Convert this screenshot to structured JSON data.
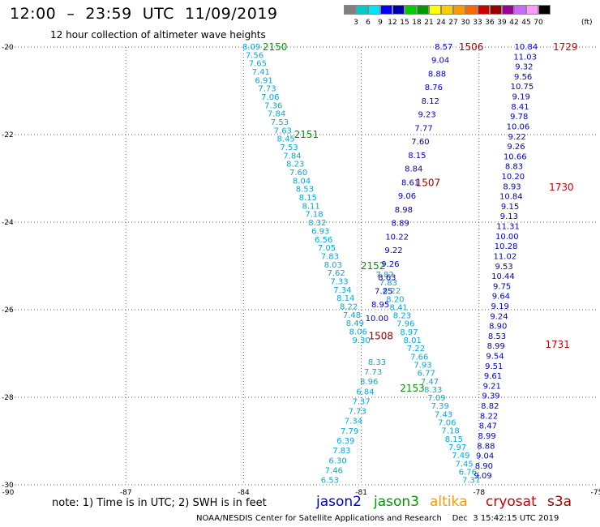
{
  "header": {
    "title": "12:00  –  23:59  UTC  11/09/2019",
    "subtitle": "12 hour collection of altimeter wave heights"
  },
  "colorbar": {
    "colors": [
      "#7f7f7f",
      "#00cccc",
      "#00e5ff",
      "#0000ff",
      "#0000aa",
      "#00cc00",
      "#009900",
      "#ffff00",
      "#ffcc00",
      "#ff9900",
      "#ff6600",
      "#cc0000",
      "#990000",
      "#990099",
      "#cc66ff",
      "#ff99ff",
      "#000000"
    ],
    "ticks": [
      "3",
      "6",
      "9",
      "12",
      "15",
      "18",
      "21",
      "24",
      "27",
      "30",
      "33",
      "36",
      "39",
      "42",
      "45",
      "70"
    ],
    "unit": "(ft)"
  },
  "axes": {
    "lon_labels": [
      "-90",
      "-87",
      "-84",
      "-81",
      "-78",
      "-75"
    ],
    "lat_labels": [
      "-20",
      "-22",
      "-24",
      "-26",
      "-28",
      "-30"
    ]
  },
  "chart_data": {
    "type": "scatter",
    "x_label": "longitude",
    "y_label": "latitude",
    "xlim": [
      -90,
      -75
    ],
    "ylim": [
      -30,
      -20
    ],
    "grid": true,
    "colors": {
      "jason3": "#009900",
      "jason3_values": "#00aadd",
      "jason2": "#0000cc",
      "cryosat": "#cc0000",
      "cryosat_dark": "#990000"
    },
    "tracks": [
      {
        "name": "A",
        "series": "jason3",
        "color": "#00aadd",
        "start": [
          -83.8,
          -20.0
        ],
        "end": [
          -81.0,
          -26.7
        ],
        "values": [
          "8.09",
          "7.56",
          "7.65",
          "7.41",
          "6.91",
          "7.73",
          "7.06",
          "7.36",
          "7.84",
          "7.53",
          "7.63",
          "8.45",
          "7.53",
          "7.84",
          "8.23",
          "7.60",
          "8.04",
          "8.53",
          "8.15",
          "8.11",
          "7.18",
          "8.32",
          "6.93",
          "6.56",
          "7.05",
          "7.83",
          "8.03",
          "7.62",
          "7.33",
          "7.34",
          "8.14",
          "8.22",
          "7.48",
          "8.49",
          "8.06",
          "9.30"
        ]
      },
      {
        "name": "B",
        "series": "jason3",
        "color": "#00aadd",
        "start": [
          -80.4,
          -25.2
        ],
        "end": [
          -78.2,
          -29.9
        ],
        "values": [
          "7.82",
          "7.83",
          "8.22",
          "8.20",
          "8.41",
          "8.23",
          "7.96",
          "8.97",
          "8.01",
          "7.22",
          "7.66",
          "7.93",
          "6.77",
          "7.47",
          "8.33",
          "7.09",
          "7.39",
          "7.43",
          "7.06",
          "7.18",
          "8.15",
          "7.97",
          "7.49",
          "7.45",
          "6.76",
          "7.37"
        ]
      },
      {
        "name": "C",
        "series": "jason3",
        "color": "#00aadd",
        "start": [
          -80.6,
          -27.2
        ],
        "end": [
          -81.8,
          -29.9
        ],
        "values": [
          "8.33",
          "7.73",
          "8.96",
          "6.84",
          "7.37",
          "7.73",
          "7.34",
          "7.79",
          "6.39",
          "7.83",
          "6.30",
          "7.46",
          "6.53"
        ]
      },
      {
        "name": "D",
        "series": "jason2",
        "color": "#0000cc",
        "start": [
          -78.9,
          -20.0
        ],
        "end": [
          -80.6,
          -26.2
        ],
        "values": [
          "8.57",
          "9.04",
          "8.88",
          "8.76",
          "8.12",
          "9.23",
          "7.77",
          "7.60",
          "8.15",
          "8.84",
          "8.61",
          "9.06",
          "8.98",
          "8.89",
          "10.22",
          "9.22",
          "9.26",
          "8.63",
          "7.25",
          "8.95",
          "10.00"
        ]
      },
      {
        "name": "E",
        "series": "jason2",
        "color": "#0000cc",
        "start": [
          -76.8,
          -20.0
        ],
        "end": [
          -77.9,
          -29.8
        ],
        "values": [
          "10.84",
          "11.03",
          "9.32",
          "9.56",
          "10.75",
          "9.19",
          "8.41",
          "9.78",
          "10.06",
          "9.22",
          "9.26",
          "10.66",
          "8.83",
          "10.20",
          "8.93",
          "10.84",
          "9.15",
          "9.13",
          "11.31",
          "10.00",
          "10.28",
          "11.02",
          "9.53",
          "10.44",
          "9.75",
          "9.64",
          "9.19",
          "9.24",
          "8.90",
          "8.53",
          "8.99",
          "9.54",
          "9.51",
          "9.61",
          "9.21",
          "9.39",
          "8.82",
          "8.22",
          "8.47",
          "8.99",
          "8.88",
          "9.04",
          "8.90",
          "9.09"
        ]
      }
    ],
    "time_labels": [
      {
        "text": "2150",
        "lon": -83.2,
        "lat": -20.0,
        "color": "#009900"
      },
      {
        "text": "2151",
        "lon": -82.4,
        "lat": -22.0,
        "color": "#009900"
      },
      {
        "text": "2152",
        "lon": -80.7,
        "lat": -25.0,
        "color": "#009900"
      },
      {
        "text": "2153",
        "lon": -79.7,
        "lat": -27.8,
        "color": "#009900"
      },
      {
        "text": "1506",
        "lon": -78.2,
        "lat": -20.0,
        "color": "#990000"
      },
      {
        "text": "1507",
        "lon": -79.3,
        "lat": -23.1,
        "color": "#990000"
      },
      {
        "text": "1508",
        "lon": -80.5,
        "lat": -26.6,
        "color": "#990000"
      },
      {
        "text": "1729",
        "lon": -75.8,
        "lat": -20.0,
        "color": "#cc0000"
      },
      {
        "text": "1730",
        "lon": -75.9,
        "lat": -23.2,
        "color": "#cc0000"
      },
      {
        "text": "1731",
        "lon": -76.0,
        "lat": -26.8,
        "color": "#cc0000"
      }
    ]
  },
  "footer": {
    "note": "note:  1) Time is in UTC;  2) SWH is in feet",
    "satellites": [
      {
        "name": "jason2",
        "color": "#0000cc"
      },
      {
        "name": "jason3",
        "color": "#009900"
      },
      {
        "name": "altika",
        "color": "#ff9900"
      },
      {
        "name": "cryosat",
        "color": "#cc0000"
      },
      {
        "name": "s3a",
        "color": "#990000"
      }
    ],
    "credit": "NOAA/NESDIS Center for Satellite Applications and Research    Dec  3 15:42:15 UTC 2019"
  }
}
